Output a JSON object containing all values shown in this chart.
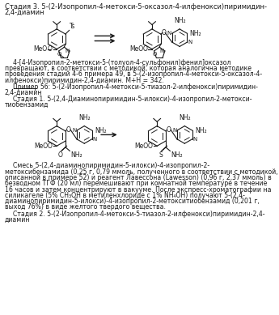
{
  "bg_color": "#ffffff",
  "text_color": "#1a1a1a",
  "fs": 6.0,
  "fs_s": 5.6,
  "title_line1": "Стадия 3. 5-(2-Изопропил-4-метокси-5-оксазол-4-илфенокси)пиримидин-",
  "title_line2": "2,4-диамин",
  "para1_line1": "    4-[4-Изопропил-2-метокси-5-(толуол-4-сульфонил)фенил]оксазол",
  "para1_line2": "превращают, в соответствии с методикой, которая аналогична методике",
  "para1_line3": "проведения стадий 4-6 примера 49, в 5-(2-изопропил-4-метокси-5-оксазол-4-",
  "para1_line4": "илфенокси)пиримидин-2,4-диамин. М+Н = 342.",
  "example56_line1": "    Пример 56: 5-(2-Изопропил-4-метокси-5-тиазол-2-илфенокси)пиримидин-",
  "example56_line2": "2,4-диамин",
  "stage1_line1": "    Стадия 1. 5-(2,4-Диаминопиримидин-5-илокси)-4-изопропил-2-метокси-",
  "stage1_line2": "тиобензамид",
  "body1_line1": "    Смесь 5-(2,4-диаминопиримидин-5-илокси)-4-изопропил-2-",
  "body1_line2": "метоксибензамида (0,25 г, 0,79 ммоль, полученного в соответствии с методикой,",
  "body1_line3": "описанной в примере 52) и реагент Лавессона (Lawesson) (0,96 г, 2,37 ммоль) в",
  "body1_line4": "безводном ТГФ (20 мл) перемешивают при комнатной температуре в течение",
  "body1_line5": "16 часов и затем концентрируют в вакууме. После экспресс-хроматографии на",
  "body1_line6": "силикагеле (5% CH₃OH в метиленхлориде с 1% NH₄OH) получают 5-(2,4-",
  "body1_line7": "диаминопиримидин-5-илокси)-4-изопропил-2-метокситиобензамид (0,201 г,",
  "body1_line8": "выход 76%) в виде желтого твердого вещества.",
  "stage2_line1": "    Стадия 2. 5-(2-Изопропил-4-метокси-5-тиазол-2-илфенокси)пиримидин-2,4-",
  "stage2_line2": "диамин"
}
